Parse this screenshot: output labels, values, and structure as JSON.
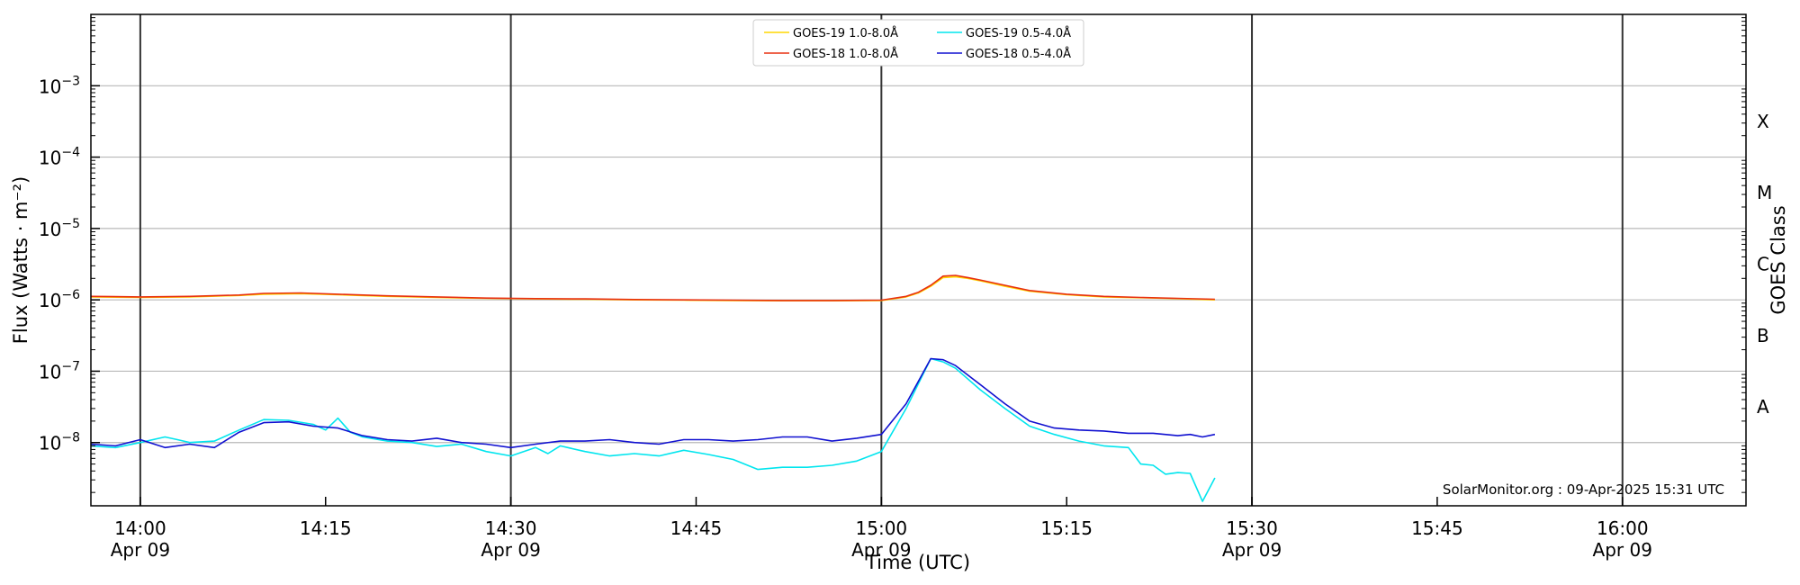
{
  "chart_data": {
    "type": "line",
    "xlabel": "Time (UTC)",
    "ylabel": "Flux (Watts · m⁻²)",
    "ylabel_right": "GOES Class",
    "yscale": "log",
    "xlim": [
      "2025-04-09 13:56",
      "2025-04-09 16:10"
    ],
    "ylim": [
      1.3e-09,
      0.01
    ],
    "grid": "horizontal",
    "legend_position": "top-center",
    "annotation": "SolarMonitor.org : 09-Apr-2025 15:31 UTC",
    "x_ticks": [
      {
        "time": "14:00",
        "main": "14:00",
        "sub": "Apr 09"
      },
      {
        "time": "14:15",
        "main": "14:15",
        "sub": ""
      },
      {
        "time": "14:30",
        "main": "14:30",
        "sub": "Apr 09"
      },
      {
        "time": "14:45",
        "main": "14:45",
        "sub": ""
      },
      {
        "time": "15:00",
        "main": "15:00",
        "sub": "Apr 09"
      },
      {
        "time": "15:15",
        "main": "15:15",
        "sub": ""
      },
      {
        "time": "15:30",
        "main": "15:30",
        "sub": "Apr 09"
      },
      {
        "time": "15:45",
        "main": "15:45",
        "sub": ""
      },
      {
        "time": "16:00",
        "main": "16:00",
        "sub": "Apr 09"
      }
    ],
    "vertical_lines": [
      "14:00",
      "14:30",
      "15:00",
      "15:30",
      "16:00"
    ],
    "y_ticks": [
      {
        "value": 1e-08,
        "base": "10",
        "exp": "−8"
      },
      {
        "value": 1e-07,
        "base": "10",
        "exp": "−7"
      },
      {
        "value": 1e-06,
        "base": "10",
        "exp": "−6"
      },
      {
        "value": 1e-05,
        "base": "10",
        "exp": "−5"
      },
      {
        "value": 0.0001,
        "base": "10",
        "exp": "−4"
      },
      {
        "value": 0.001,
        "base": "10",
        "exp": "−3"
      }
    ],
    "goes_classes": [
      {
        "label": "A",
        "value": 1e-08
      },
      {
        "label": "B",
        "value": 1e-07
      },
      {
        "label": "C",
        "value": 1e-06
      },
      {
        "label": "M",
        "value": 1e-05
      },
      {
        "label": "X",
        "value": 0.0001
      }
    ],
    "series": [
      {
        "name": "GOES-19 1.0-8.0Å",
        "color": "#ffd700",
        "x": [
          "13:56",
          "14:00",
          "14:04",
          "14:08",
          "14:10",
          "14:13",
          "14:16",
          "14:20",
          "14:24",
          "14:28",
          "14:32",
          "14:36",
          "14:40",
          "14:44",
          "14:48",
          "14:52",
          "14:56",
          "15:00",
          "15:02",
          "15:03",
          "15:04",
          "15:05",
          "15:06",
          "15:07",
          "15:08",
          "15:10",
          "15:12",
          "15:15",
          "15:18",
          "15:21",
          "15:24",
          "15:27"
        ],
        "y": [
          1.1e-06,
          1.08e-06,
          1.1e-06,
          1.15e-06,
          1.2e-06,
          1.22e-06,
          1.18e-06,
          1.12e-06,
          1.08e-06,
          1.05e-06,
          1.03e-06,
          1.02e-06,
          1e-06,
          9.9e-07,
          9.8e-07,
          9.7e-07,
          9.7e-07,
          9.8e-07,
          1.1e-06,
          1.25e-06,
          1.55e-06,
          2.05e-06,
          2.1e-06,
          2e-06,
          1.85e-06,
          1.55e-06,
          1.32e-06,
          1.18e-06,
          1.1e-06,
          1.07e-06,
          1.04e-06,
          1e-06
        ]
      },
      {
        "name": "GOES-18 1.0-8.0Å",
        "color": "#e83010",
        "x": [
          "13:56",
          "14:00",
          "14:04",
          "14:08",
          "14:10",
          "14:13",
          "14:16",
          "14:20",
          "14:24",
          "14:28",
          "14:32",
          "14:36",
          "14:40",
          "14:44",
          "14:48",
          "14:52",
          "14:56",
          "15:00",
          "15:02",
          "15:03",
          "15:04",
          "15:05",
          "15:06",
          "15:07",
          "15:08",
          "15:10",
          "15:12",
          "15:15",
          "15:18",
          "15:21",
          "15:24",
          "15:27"
        ],
        "y": [
          1.12e-06,
          1.1e-06,
          1.12e-06,
          1.17e-06,
          1.23e-06,
          1.25e-06,
          1.2e-06,
          1.14e-06,
          1.1e-06,
          1.06e-06,
          1.04e-06,
          1.03e-06,
          1.01e-06,
          1e-06,
          9.9e-07,
          9.8e-07,
          9.8e-07,
          9.9e-07,
          1.12e-06,
          1.28e-06,
          1.6e-06,
          2.15e-06,
          2.2e-06,
          2.05e-06,
          1.9e-06,
          1.6e-06,
          1.35e-06,
          1.2e-06,
          1.12e-06,
          1.08e-06,
          1.05e-06,
          1.02e-06
        ]
      },
      {
        "name": "GOES-19 0.5-4.0Å",
        "color": "#00e5ee",
        "x": [
          "13:56",
          "13:58",
          "14:00",
          "14:02",
          "14:03",
          "14:04",
          "14:06",
          "14:08",
          "14:10",
          "14:12",
          "14:14",
          "14:15",
          "14:16",
          "14:17",
          "14:18",
          "14:20",
          "14:22",
          "14:24",
          "14:26",
          "14:28",
          "14:30",
          "14:32",
          "14:33",
          "14:34",
          "14:36",
          "14:38",
          "14:40",
          "14:42",
          "14:44",
          "14:46",
          "14:48",
          "14:50",
          "14:52",
          "14:54",
          "14:56",
          "14:58",
          "15:00",
          "15:02",
          "15:04",
          "15:05",
          "15:06",
          "15:08",
          "15:10",
          "15:12",
          "15:14",
          "15:16",
          "15:18",
          "15:20",
          "15:21",
          "15:22",
          "15:23",
          "15:24",
          "15:25",
          "15:26",
          "15:27"
        ],
        "y": [
          9e-09,
          8.5e-09,
          1e-08,
          1.2e-08,
          1.1e-08,
          1e-08,
          1.05e-08,
          1.5e-08,
          2.1e-08,
          2.05e-08,
          1.8e-08,
          1.5e-08,
          2.2e-08,
          1.4e-08,
          1.2e-08,
          1.05e-08,
          1e-08,
          8.8e-09,
          9.5e-09,
          7.5e-09,
          6.5e-09,
          8.5e-09,
          7e-09,
          9e-09,
          7.5e-09,
          6.5e-09,
          7e-09,
          6.5e-09,
          7.8e-09,
          6.8e-09,
          5.8e-09,
          4.2e-09,
          4.5e-09,
          4.5e-09,
          4.8e-09,
          5.5e-09,
          7.5e-09,
          3e-08,
          1.5e-07,
          1.35e-07,
          1.1e-07,
          5.5e-08,
          3e-08,
          1.7e-08,
          1.3e-08,
          1.05e-08,
          9e-09,
          8.5e-09,
          5e-09,
          4.8e-09,
          3.6e-09,
          3.8e-09,
          3.7e-09,
          1.5e-09,
          3.2e-09
        ]
      },
      {
        "name": "GOES-18 0.5-4.0Å",
        "color": "#1010d0",
        "x": [
          "13:56",
          "13:58",
          "14:00",
          "14:02",
          "14:04",
          "14:06",
          "14:08",
          "14:10",
          "14:12",
          "14:14",
          "14:16",
          "14:18",
          "14:20",
          "14:22",
          "14:24",
          "14:26",
          "14:28",
          "14:30",
          "14:32",
          "14:34",
          "14:36",
          "14:38",
          "14:40",
          "14:42",
          "14:44",
          "14:46",
          "14:48",
          "14:50",
          "14:52",
          "14:54",
          "14:56",
          "14:58",
          "15:00",
          "15:02",
          "15:04",
          "15:05",
          "15:06",
          "15:08",
          "15:10",
          "15:12",
          "15:14",
          "15:16",
          "15:18",
          "15:20",
          "15:22",
          "15:24",
          "15:25",
          "15:26",
          "15:27"
        ],
        "y": [
          9.5e-09,
          9e-09,
          1.1e-08,
          8.5e-09,
          9.5e-09,
          8.5e-09,
          1.4e-08,
          1.9e-08,
          1.95e-08,
          1.7e-08,
          1.6e-08,
          1.25e-08,
          1.1e-08,
          1.05e-08,
          1.15e-08,
          1e-08,
          9.5e-09,
          8.5e-09,
          9.5e-09,
          1.05e-08,
          1.05e-08,
          1.1e-08,
          1e-08,
          9.5e-09,
          1.1e-08,
          1.1e-08,
          1.05e-08,
          1.1e-08,
          1.2e-08,
          1.2e-08,
          1.05e-08,
          1.15e-08,
          1.3e-08,
          3.5e-08,
          1.5e-07,
          1.45e-07,
          1.2e-07,
          6.5e-08,
          3.5e-08,
          2e-08,
          1.6e-08,
          1.5e-08,
          1.45e-08,
          1.35e-08,
          1.35e-08,
          1.25e-08,
          1.3e-08,
          1.2e-08,
          1.3e-08
        ]
      }
    ]
  }
}
